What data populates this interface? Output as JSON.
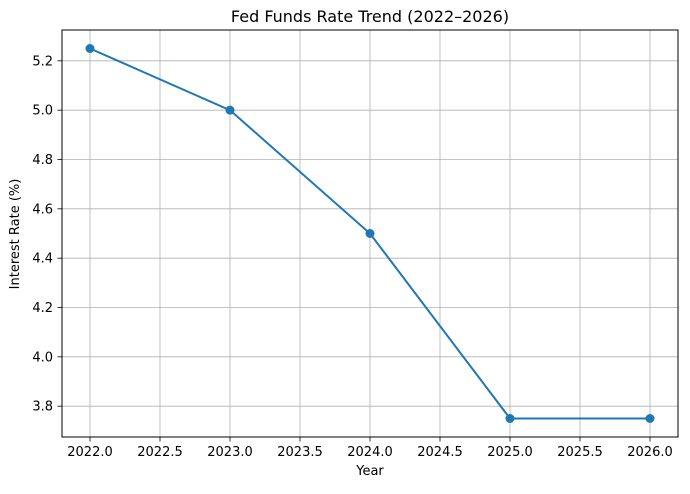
{
  "chart_data": {
    "type": "line",
    "title": "Fed Funds Rate Trend (2022–2026)",
    "xlabel": "Year",
    "ylabel": "Interest Rate (%)",
    "x": [
      2022,
      2023,
      2024,
      2025,
      2026
    ],
    "series": [
      {
        "name": "Fed Funds Rate",
        "values": [
          5.25,
          5.0,
          4.5,
          3.75,
          3.75
        ]
      }
    ],
    "xlim": [
      2021.8,
      2026.2
    ],
    "ylim": [
      3.675,
      5.325
    ],
    "xtick_labels": [
      "2022.0",
      "2022.5",
      "2023.0",
      "2023.5",
      "2024.0",
      "2024.5",
      "2025.0",
      "2025.5",
      "2026.0"
    ],
    "ytick_labels": [
      "3.8",
      "4.0",
      "4.2",
      "4.4",
      "4.6",
      "4.8",
      "5.0",
      "5.2"
    ],
    "grid": true,
    "legend_position": "none",
    "line_color": "#1f77b4",
    "marker": "o",
    "grid_color": "#b0b0b0",
    "background_color": "#ffffff"
  }
}
